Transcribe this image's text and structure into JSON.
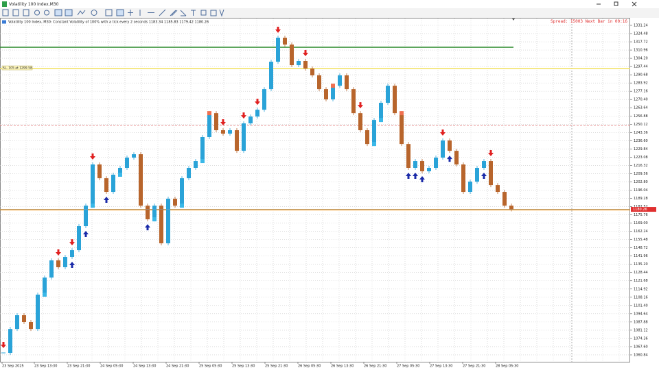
{
  "window": {
    "title": "Volatility 100 Index,M30"
  },
  "chart_data": {
    "type": "candlestick",
    "info": "Volatility 100 Index, M30:  Constant Volatility of 100% with a tick every 2 seconds  1183.34 1185.83 1179.42 1180.26",
    "status": "Spread: 15003 Next Bar in 00:16",
    "level_label": "SL, 105 at 1299.58",
    "x_labels": [
      "23 Sep 2025",
      "23 Sep 13:30",
      "23 Sep 21:30",
      "24 Sep 05:30",
      "24 Sep 13:30",
      "24 Sep 21:30",
      "25 Sep 05:30",
      "25 Sep 13:30",
      "25 Sep 21:30",
      "26 Sep 05:30",
      "26 Sep 13:30",
      "26 Sep 21:30",
      "27 Sep 05:30",
      "27 Sep 13:30",
      "27 Sep 21:30",
      "28 Sep 05:30"
    ],
    "values": [
      1062.5,
      1082.1,
      1093.4,
      1087.8,
      1082.1,
      1110.3,
      1124.3,
      1138.4,
      1132.8,
      1141.2,
      1146.8,
      1166.5,
      1183.3,
      1217.1,
      1205.8,
      1194.6,
      1208.7,
      1214.3,
      1222.7,
      1225.5,
      1183.3,
      1172.1,
      1183.3,
      1152.4,
      1189.0,
      1183.3,
      1205.8,
      1214.3,
      1219.9,
      1239.6,
      1259.2,
      1245.2,
      1242.4,
      1245.2,
      1228.3,
      1250.8,
      1256.4,
      1262.0,
      1278.9,
      1301.4,
      1321.1,
      1315.5,
      1298.6,
      1302.0,
      1295.8,
      1290.2,
      1278.9,
      1270.5,
      1281.7,
      1290.2,
      1278.9,
      1259.2,
      1245.2,
      1233.9,
      1253.6,
      1267.7,
      1281.7,
      1259.2,
      1233.9,
      1214.3,
      1219.9,
      1211.5,
      1214.3,
      1222.7,
      1236.8,
      1228.3,
      1217.1,
      1194.6,
      1203.0,
      1214.3,
      1219.9,
      1200.2,
      1194.6,
      1183.3,
      1180.26
    ],
    "up_color": "#2aa3d8",
    "down_color": "#b8652c",
    "sell_arrows": [
      0,
      8,
      10,
      13,
      32,
      35,
      37,
      40,
      44,
      52,
      64,
      71
    ],
    "buy_arrows": [
      10,
      12,
      15,
      21,
      59,
      60,
      61,
      65,
      70
    ],
    "up_markers": [
      6,
      13,
      17,
      22,
      26,
      29,
      54,
      55
    ],
    "down_markers": [
      30,
      48,
      58
    ],
    "levels": [
      {
        "value": 1313.3,
        "color": "#2e8b2e",
        "short": true
      },
      {
        "value": 1295.8,
        "color": "#f3e36a"
      },
      {
        "value": 1180.0,
        "color": "#f08c00"
      },
      {
        "value": 1249.1,
        "color": "#e68080",
        "dashed": true
      }
    ],
    "current_price": 1180.26,
    "ylim": [
      1055.2,
      1336.86
    ],
    "yticks": [
      1331.24,
      1324.48,
      1317.72,
      1310.96,
      {
        "value": 1304.2,
        "label": "1304.20"
      },
      1297.44,
      1290.68,
      1283.92,
      1277.16,
      {
        "value": 1270.4,
        "label": "1270.40"
      },
      1263.64,
      1256.88,
      1250.12,
      1243.36,
      {
        "value": 1236.6,
        "label": "1236.60"
      },
      1229.84,
      1223.08,
      1216.32,
      1209.56,
      {
        "value": 1202.8,
        "label": "1202.80"
      },
      1196.04,
      1189.28,
      1182.52,
      1175.76,
      {
        "value": 1169,
        "label": "1169.00"
      },
      1162.24,
      1155.48,
      1148.72,
      1141.96,
      {
        "value": 1135.2,
        "label": "1135.20"
      },
      1128.44,
      1121.68,
      1114.92,
      1108.16,
      {
        "value": 1101.4,
        "label": "1101.40"
      },
      1094.64,
      1087.88,
      1081.12,
      1074.36,
      {
        "value": 1067.6,
        "label": "1067.60"
      },
      1060.84
    ],
    "grid": true
  }
}
